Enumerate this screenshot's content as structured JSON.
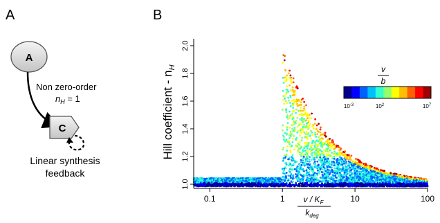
{
  "panels": {
    "a_label": "A",
    "b_label": "B"
  },
  "diagram": {
    "node_a": "A",
    "node_c": "C",
    "edge_label_line1": "Non zero-order",
    "edge_label_nh": "n",
    "edge_label_nh_sub": "H",
    "edge_label_nh_value": " = 1",
    "caption_line1": "Linear synthesis",
    "caption_line2": "feedback"
  },
  "chart_data": {
    "type": "scatter",
    "ylabel_main": "Hill coefficient - n",
    "ylabel_sub": "H",
    "x_scale": "log",
    "x_ticks": [
      "0.1",
      "1",
      "10",
      "100"
    ],
    "xlim": [
      0.06,
      100
    ],
    "y_ticks": [
      "1.0",
      "1.2",
      "1.4",
      "1.6",
      "1.8",
      "2.0"
    ],
    "ylim": [
      0.97,
      2.05
    ],
    "xlabel_numerator": "v / K",
    "xlabel_numerator_sub": "F",
    "xlabel_denominator": "k",
    "xlabel_denominator_sub": "deg",
    "colorbar": {
      "title_num": "v",
      "title_den": "b",
      "tick_low_base": "10",
      "tick_low_exp": "-3",
      "tick_mid_base": "10",
      "tick_mid_exp": "2",
      "tick_high_base": "10",
      "tick_high_exp": "7",
      "colors": [
        "#00008f",
        "#0000ff",
        "#0060ff",
        "#00bfff",
        "#30ffcf",
        "#90ff70",
        "#ffff00",
        "#ffbf00",
        "#ff6000",
        "#ff0000",
        "#a00000"
      ]
    },
    "point_cloud": {
      "baseline_y": 1.0,
      "peak_x": 1,
      "peak_y": 2.0,
      "approx_upper_envelope": [
        [
          1,
          2.0
        ],
        [
          2,
          1.6
        ],
        [
          5,
          1.3
        ],
        [
          10,
          1.2
        ],
        [
          30,
          1.08
        ],
        [
          100,
          1.03
        ]
      ]
    }
  }
}
